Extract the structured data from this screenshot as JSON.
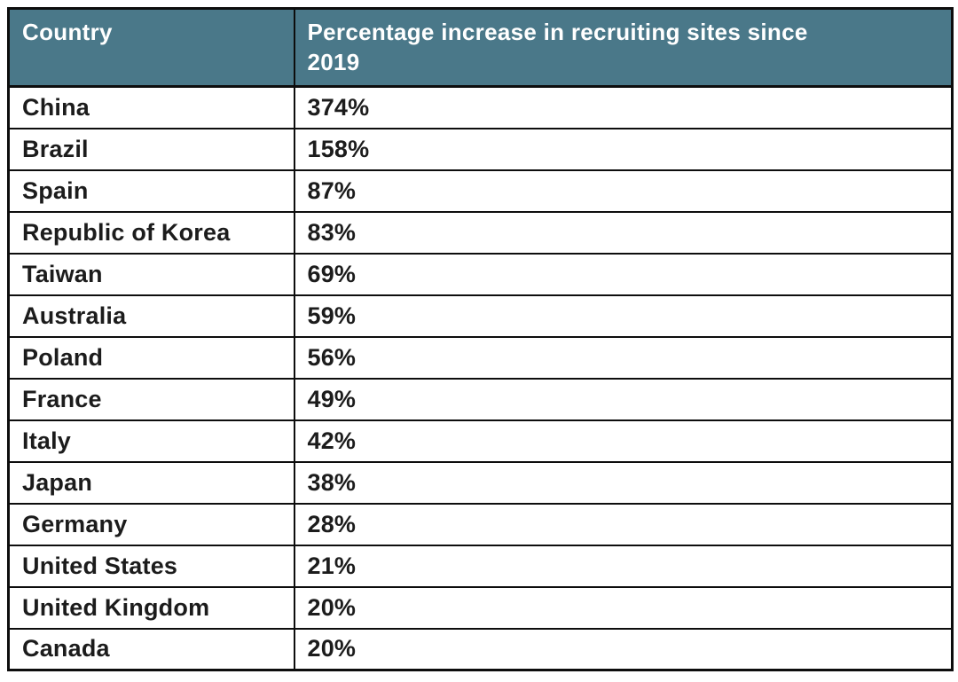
{
  "styles": {
    "header_bg": "#4a7889",
    "header_text": "#ffffff",
    "body_text": "#1c1c1c",
    "border": "#0d0d0d",
    "page_bg": "#ffffff"
  },
  "table": {
    "header": {
      "country_label": "Country",
      "percentage_label": "Percentage increase in recruiting sites since 2019",
      "percentage_label_line1": "Percentage increase in recruiting sites since",
      "percentage_label_line2": "2019"
    }
  },
  "chart_data": {
    "type": "table",
    "title": "Percentage increase in recruiting sites since 2019 by country",
    "columns": [
      "Country",
      "Percentage increase in recruiting sites since 2019"
    ],
    "rows": [
      {
        "country": "China",
        "value": "374%"
      },
      {
        "country": "Brazil",
        "value": "158%"
      },
      {
        "country": "Spain",
        "value": "87%"
      },
      {
        "country": "Republic of Korea",
        "value": "83%"
      },
      {
        "country": "Taiwan",
        "value": "69%"
      },
      {
        "country": "Australia",
        "value": "59%"
      },
      {
        "country": "Poland",
        "value": "56%"
      },
      {
        "country": "France",
        "value": "49%"
      },
      {
        "country": "Italy",
        "value": "42%"
      },
      {
        "country": "Japan",
        "value": "38%"
      },
      {
        "country": "Germany",
        "value": "28%"
      },
      {
        "country": "United States",
        "value": "21%"
      },
      {
        "country": "United Kingdom",
        "value": "20%"
      },
      {
        "country": "Canada",
        "value": "20%"
      }
    ],
    "values_numeric_percent": [
      374,
      158,
      87,
      83,
      69,
      59,
      56,
      49,
      42,
      38,
      28,
      21,
      20,
      20
    ]
  }
}
